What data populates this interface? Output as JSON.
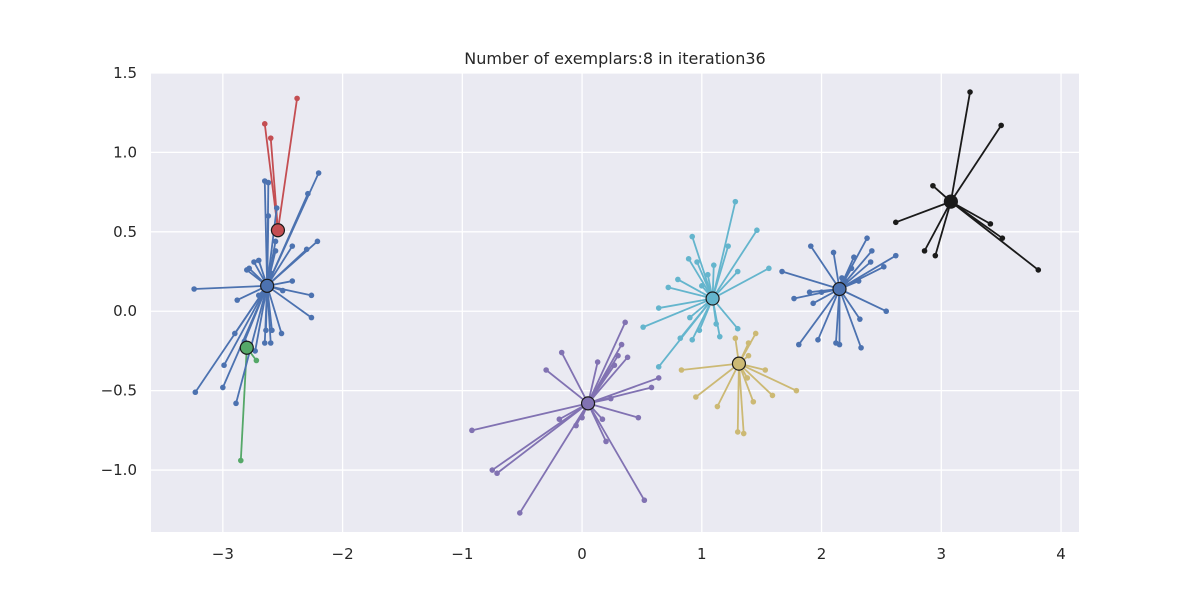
{
  "chart_data": {
    "type": "scatter",
    "title": "Number of exemplars:8 in iteration36",
    "xlabel": "",
    "ylabel": "",
    "xlim": [
      -3.6,
      4.15
    ],
    "ylim": [
      -1.39,
      1.5
    ],
    "xticks": [
      -3,
      -2,
      -1,
      0,
      1,
      2,
      3,
      4
    ],
    "xtick_labels": [
      "−3",
      "−2",
      "−1",
      "0",
      "1",
      "2",
      "3",
      "4"
    ],
    "yticks": [
      -1.0,
      -0.5,
      0.0,
      0.5,
      1.0,
      1.5
    ],
    "ytick_labels": [
      "−1.0",
      "−0.5",
      "0.0",
      "0.5",
      "1.0",
      "1.5"
    ],
    "grid": true,
    "background": "#EAEAF2",
    "clusters": [
      {
        "color": "#C44E52",
        "exemplar": [
          -2.54,
          0.51
        ],
        "points": [
          [
            -2.65,
            1.18
          ],
          [
            -2.6,
            1.09
          ],
          [
            -2.38,
            1.34
          ]
        ]
      },
      {
        "color": "#55A868",
        "exemplar": [
          -2.8,
          -0.23
        ],
        "points": [
          [
            -2.85,
            -0.94
          ],
          [
            -2.72,
            -0.31
          ]
        ]
      },
      {
        "color": "#4C72B0",
        "exemplar": [
          -2.63,
          0.16
        ],
        "points": [
          [
            -3.24,
            0.14
          ],
          [
            -2.2,
            0.87
          ],
          [
            -2.29,
            0.74
          ],
          [
            -2.21,
            0.44
          ],
          [
            -2.3,
            0.39
          ],
          [
            -2.42,
            0.41
          ],
          [
            -2.55,
            0.65
          ],
          [
            -2.65,
            0.82
          ],
          [
            -2.62,
            0.81
          ],
          [
            -2.62,
            0.6
          ],
          [
            -2.56,
            0.44
          ],
          [
            -2.56,
            0.38
          ],
          [
            -2.7,
            0.32
          ],
          [
            -2.74,
            0.31
          ],
          [
            -2.78,
            0.27
          ],
          [
            -2.8,
            0.26
          ],
          [
            -2.88,
            0.07
          ],
          [
            -2.26,
            0.1
          ],
          [
            -2.42,
            0.19
          ],
          [
            -2.5,
            0.13
          ],
          [
            -2.26,
            -0.04
          ],
          [
            -2.51,
            -0.14
          ],
          [
            -2.59,
            -0.12
          ],
          [
            -2.64,
            -0.12
          ],
          [
            -2.6,
            -0.2
          ],
          [
            -2.65,
            -0.2
          ],
          [
            -2.73,
            -0.25
          ],
          [
            -2.82,
            -0.19
          ],
          [
            -2.9,
            -0.14
          ],
          [
            -2.99,
            -0.34
          ],
          [
            -3.0,
            -0.48
          ],
          [
            -3.23,
            -0.51
          ],
          [
            -2.89,
            -0.58
          ],
          [
            -2.6,
            0.24
          ],
          [
            -2.7,
            0.1
          ]
        ]
      },
      {
        "color": "#8172B2",
        "exemplar": [
          0.05,
          -0.58
        ],
        "points": [
          [
            -0.92,
            -0.75
          ],
          [
            -0.75,
            -1.0
          ],
          [
            -0.71,
            -1.02
          ],
          [
            -0.52,
            -1.27
          ],
          [
            -0.3,
            -0.37
          ],
          [
            -0.17,
            -0.26
          ],
          [
            -0.19,
            -0.68
          ],
          [
            -0.05,
            -0.72
          ],
          [
            0.0,
            -0.67
          ],
          [
            0.13,
            -0.32
          ],
          [
            0.24,
            -0.55
          ],
          [
            0.27,
            -0.34
          ],
          [
            0.3,
            -0.28
          ],
          [
            0.33,
            -0.21
          ],
          [
            0.36,
            -0.07
          ],
          [
            0.38,
            -0.29
          ],
          [
            0.2,
            -0.82
          ],
          [
            0.17,
            -0.68
          ],
          [
            0.47,
            -0.67
          ],
          [
            0.58,
            -0.48
          ],
          [
            0.52,
            -1.19
          ],
          [
            0.64,
            -0.42
          ]
        ]
      },
      {
        "color": "#64B5CD",
        "exemplar": [
          1.09,
          0.08
        ],
        "points": [
          [
            0.51,
            -0.1
          ],
          [
            0.64,
            0.02
          ],
          [
            0.64,
            -0.35
          ],
          [
            0.72,
            0.15
          ],
          [
            0.8,
            0.2
          ],
          [
            0.82,
            -0.17
          ],
          [
            0.89,
            0.33
          ],
          [
            0.9,
            -0.04
          ],
          [
            0.92,
            -0.18
          ],
          [
            0.92,
            0.47
          ],
          [
            0.96,
            0.31
          ],
          [
            0.98,
            -0.12
          ],
          [
            1.0,
            0.16
          ],
          [
            1.05,
            0.23
          ],
          [
            1.1,
            0.29
          ],
          [
            1.12,
            -0.08
          ],
          [
            1.15,
            -0.16
          ],
          [
            1.22,
            0.41
          ],
          [
            1.28,
            0.69
          ],
          [
            1.3,
            0.25
          ],
          [
            1.3,
            -0.11
          ],
          [
            1.46,
            0.51
          ],
          [
            1.56,
            0.27
          ]
        ]
      },
      {
        "color": "#CCB974",
        "exemplar": [
          1.31,
          -0.33
        ],
        "points": [
          [
            0.83,
            -0.37
          ],
          [
            0.95,
            -0.54
          ],
          [
            1.13,
            -0.6
          ],
          [
            1.28,
            -0.17
          ],
          [
            1.3,
            -0.76
          ],
          [
            1.35,
            -0.77
          ],
          [
            1.38,
            -0.42
          ],
          [
            1.39,
            -0.28
          ],
          [
            1.39,
            -0.2
          ],
          [
            1.45,
            -0.14
          ],
          [
            1.43,
            -0.57
          ],
          [
            1.53,
            -0.37
          ],
          [
            1.59,
            -0.53
          ],
          [
            1.79,
            -0.5
          ]
        ]
      },
      {
        "color": "#4C72B0",
        "exemplar": [
          2.15,
          0.14
        ],
        "points": [
          [
            1.67,
            0.25
          ],
          [
            1.77,
            0.08
          ],
          [
            1.81,
            -0.21
          ],
          [
            1.91,
            0.41
          ],
          [
            1.9,
            0.12
          ],
          [
            1.93,
            0.05
          ],
          [
            1.97,
            -0.18
          ],
          [
            2.1,
            0.37
          ],
          [
            2.12,
            -0.2
          ],
          [
            2.15,
            -0.21
          ],
          [
            2.17,
            0.21
          ],
          [
            2.2,
            0.19
          ],
          [
            2.25,
            0.27
          ],
          [
            2.27,
            0.34
          ],
          [
            2.31,
            0.19
          ],
          [
            2.32,
            -0.05
          ],
          [
            2.33,
            -0.23
          ],
          [
            2.38,
            0.46
          ],
          [
            2.42,
            0.38
          ],
          [
            2.41,
            0.31
          ],
          [
            2.52,
            0.28
          ],
          [
            2.54,
            0.0
          ],
          [
            2.62,
            0.35
          ],
          [
            2.0,
            0.12
          ]
        ]
      },
      {
        "color": "#1A1A1A",
        "exemplar": [
          3.08,
          0.69
        ],
        "points": [
          [
            2.62,
            0.56
          ],
          [
            2.86,
            0.38
          ],
          [
            2.93,
            0.79
          ],
          [
            2.95,
            0.35
          ],
          [
            3.24,
            1.38
          ],
          [
            3.41,
            0.55
          ],
          [
            3.5,
            1.17
          ],
          [
            3.51,
            0.46
          ],
          [
            3.81,
            0.26
          ]
        ]
      }
    ]
  }
}
